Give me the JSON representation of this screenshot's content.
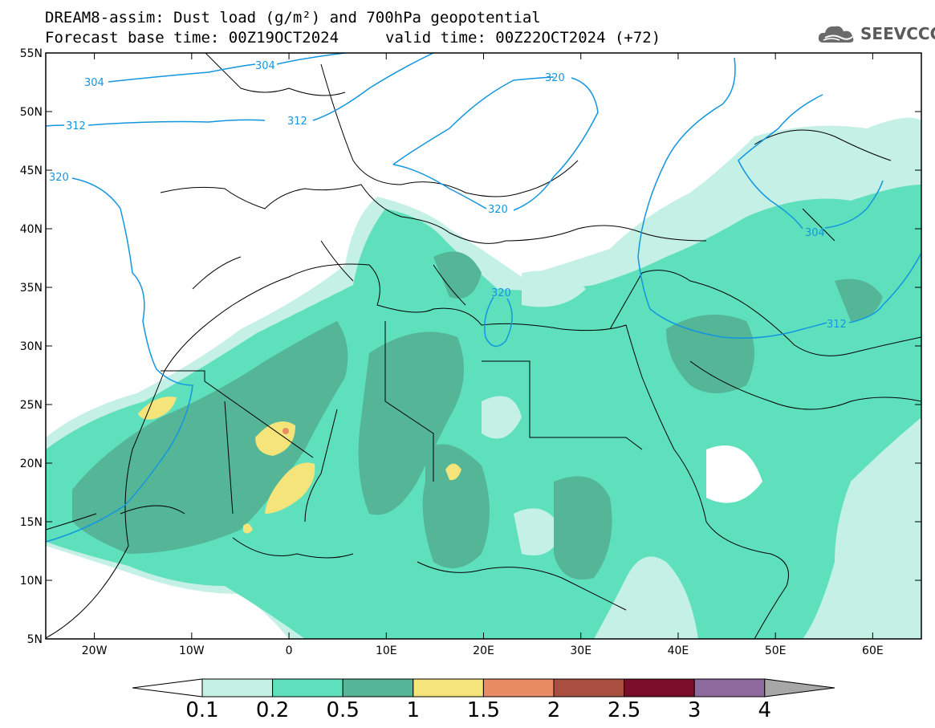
{
  "header": {
    "title_line1": "DREAM8-assim: Dust load (g/m²) and 700hPa geopotential",
    "forecast_base": "Forecast base time: 00Z19OCT2024",
    "valid_time": "valid time: 00Z22OCT2024 (+72)"
  },
  "logo": {
    "text": "SEEVCCC",
    "icon": "cloud-icon"
  },
  "map": {
    "projection": "lat-lon",
    "lon_range": [
      -25,
      65
    ],
    "lat_range": [
      5,
      55
    ],
    "lat_ticks": [
      "55N",
      "50N",
      "45N",
      "40N",
      "35N",
      "30N",
      "25N",
      "20N",
      "15N",
      "10N",
      "5N"
    ],
    "lon_ticks": [
      "20W",
      "10W",
      "0",
      "10E",
      "20E",
      "30E",
      "40E",
      "50E",
      "60E"
    ],
    "contour_labels": [
      "304",
      "304",
      "312",
      "312",
      "320",
      "320",
      "320",
      "320",
      "304",
      "312"
    ]
  },
  "colorbar": {
    "labels": [
      "0.1",
      "0.2",
      "0.5",
      "1",
      "1.5",
      "2",
      "2.5",
      "3",
      "4"
    ],
    "colors": [
      "#c4f0e6",
      "#5ee0bc",
      "#54b597",
      "#f4e47a",
      "#e98c63",
      "#a84f3f",
      "#7a0e28",
      "#8c6a9e"
    ],
    "under_color": "#ffffff",
    "over_color": "#a7a7a7"
  }
}
